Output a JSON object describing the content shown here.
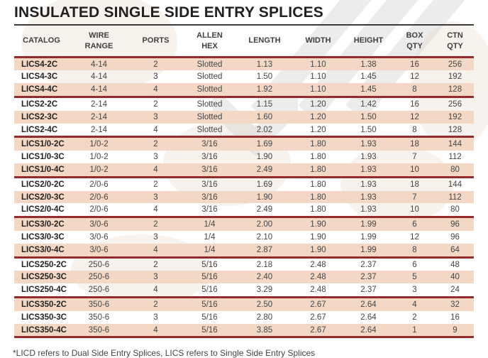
{
  "page": {
    "title": "INSULATED SINGLE SIDE ENTRY SPLICES",
    "footnote": "*LICD refers to Dual Side Entry Splices, LICS refers to Single Side Entry Splices"
  },
  "colors": {
    "separator_red": "#942b2d",
    "row_stripe": "#f2d8c5",
    "title_text": "#231f20",
    "header_text": "#3f3f41",
    "body_text": "#454547"
  },
  "table": {
    "columns": [
      {
        "id": "catalog",
        "label": "CATALOG"
      },
      {
        "id": "wire-range",
        "label": "WIRE\nRANGE"
      },
      {
        "id": "ports",
        "label": "PORTS"
      },
      {
        "id": "allen-hex",
        "label": "ALLEN\nHEX"
      },
      {
        "id": "length",
        "label": "LENGTH"
      },
      {
        "id": "width",
        "label": "WIDTH"
      },
      {
        "id": "height",
        "label": "HEIGHT"
      },
      {
        "id": "box-qty",
        "label": "BOX\nQTY"
      },
      {
        "id": "ctn-qty",
        "label": "CTN\nQTY"
      }
    ],
    "group_size": 3,
    "rows": [
      [
        "LICS4-2C",
        "4-14",
        "2",
        "Slotted",
        "1.13",
        "1.10",
        "1.38",
        "16",
        "256"
      ],
      [
        "LICS4-3C",
        "4-14",
        "3",
        "Slotted",
        "1.50",
        "1.10",
        "1.45",
        "12",
        "192"
      ],
      [
        "LICS4-4C",
        "4-14",
        "4",
        "Slotted",
        "1.92",
        "1.10",
        "1.45",
        "8",
        "128"
      ],
      [
        "LICS2-2C",
        "2-14",
        "2",
        "Slotted",
        "1.15",
        "1.20",
        "1.42",
        "16",
        "256"
      ],
      [
        "LICS2-3C",
        "2-14",
        "3",
        "Slotted",
        "1.60",
        "1.20",
        "1.50",
        "12",
        "192"
      ],
      [
        "LICS2-4C",
        "2-14",
        "4",
        "Slotted",
        "2.02",
        "1.20",
        "1.50",
        "8",
        "128"
      ],
      [
        "LICS1/0-2C",
        "1/0-2",
        "2",
        "3/16",
        "1.69",
        "1.80",
        "1.93",
        "18",
        "144"
      ],
      [
        "LICS1/0-3C",
        "1/0-2",
        "3",
        "3/16",
        "1.90",
        "1.80",
        "1.93",
        "7",
        "112"
      ],
      [
        "LICS1/0-4C",
        "1/0-2",
        "4",
        "3/16",
        "2.49",
        "1.80",
        "1.93",
        "10",
        "80"
      ],
      [
        "LICS2/0-2C",
        "2/0-6",
        "2",
        "3/16",
        "1.69",
        "1.80",
        "1.93",
        "18",
        "144"
      ],
      [
        "LICS2/0-3C",
        "2/0-6",
        "3",
        "3/16",
        "1.90",
        "1.80",
        "1.93",
        "7",
        "112"
      ],
      [
        "LICS2/0-4C",
        "2/0-6",
        "4",
        "3/16",
        "2.49",
        "1.80",
        "1.93",
        "10",
        "80"
      ],
      [
        "LICS3/0-2C",
        "3/0-6",
        "2",
        "1/4",
        "2.00",
        "1.90",
        "1.99",
        "6",
        "96"
      ],
      [
        "LICS3/0-3C",
        "3/0-6",
        "3",
        "1/4",
        "2.10",
        "1.90",
        "1.99",
        "12",
        "96"
      ],
      [
        "LICS3/0-4C",
        "3/0-6",
        "4",
        "1/4",
        "2.87",
        "1.90",
        "1.99",
        "8",
        "64"
      ],
      [
        "LICS250-2C",
        "250-6",
        "2",
        "5/16",
        "2.18",
        "2.48",
        "2.37",
        "6",
        "48"
      ],
      [
        "LICS250-3C",
        "250-6",
        "3",
        "5/16",
        "2.40",
        "2.48",
        "2.37",
        "5",
        "40"
      ],
      [
        "LICS250-4C",
        "250-6",
        "4",
        "5/16",
        "3.29",
        "2.48",
        "2.37",
        "3",
        "24"
      ],
      [
        "LICS350-2C",
        "350-6",
        "2",
        "5/16",
        "2.50",
        "2.67",
        "2.64",
        "4",
        "32"
      ],
      [
        "LICS350-3C",
        "350-6",
        "3",
        "5/16",
        "2.80",
        "2.67",
        "2.64",
        "2",
        "16"
      ],
      [
        "LICS350-4C",
        "350-6",
        "4",
        "5/16",
        "3.85",
        "2.67",
        "2.64",
        "1",
        "9"
      ]
    ]
  }
}
